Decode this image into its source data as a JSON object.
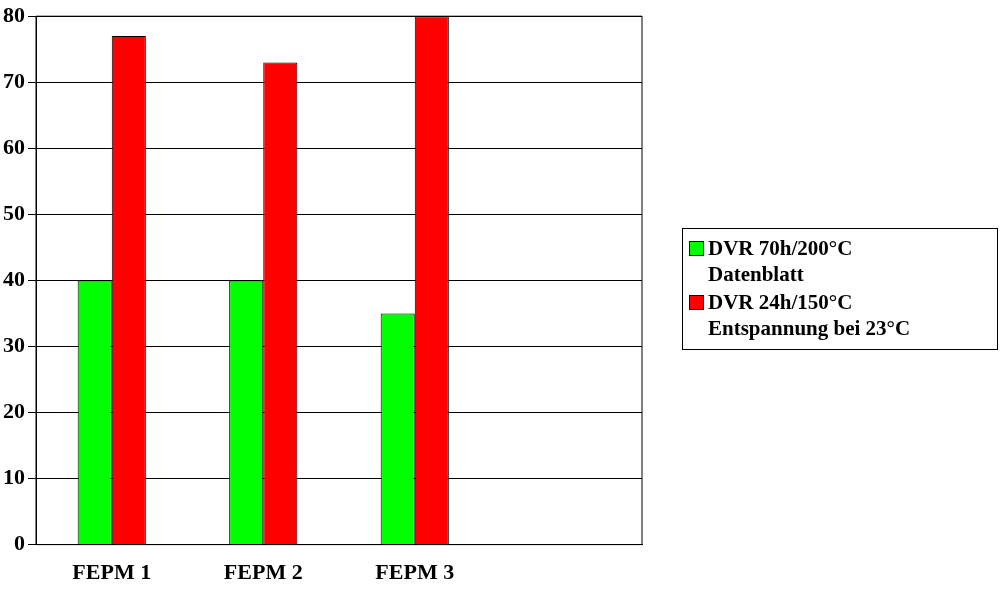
{
  "chart_data": {
    "type": "bar",
    "categories": [
      "FEPM 1",
      "FEPM 2",
      "FEPM 3",
      null
    ],
    "series": [
      {
        "name": "DVR 70h/200°C Datenblatt",
        "color": "#00ff00",
        "values": [
          40,
          40,
          35,
          null
        ]
      },
      {
        "name": "DVR 24h/150°C Entspannung bei 23°C",
        "color": "#ff0000",
        "values": [
          77,
          73,
          80,
          null
        ]
      }
    ],
    "ylim": [
      0,
      80
    ],
    "yticks": [
      0,
      10,
      20,
      30,
      40,
      50,
      60,
      70,
      80
    ],
    "grid": "y",
    "legend": "right"
  }
}
